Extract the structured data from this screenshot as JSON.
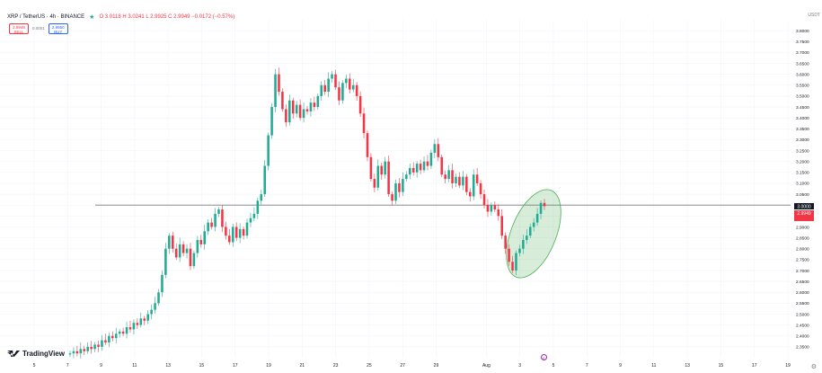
{
  "header": {
    "symbol": "XRP / TetherUS · 4h · BINANCE",
    "ohlc": "O 3.0118 H 3.0241 L 2.9925 C 2.9949 −0.0172 (−0.57%)"
  },
  "trade": {
    "sell_price": "2.9949",
    "sell_label": "SELL",
    "spread": "0.0001",
    "buy_price": "2.9950",
    "buy_label": "BUY"
  },
  "currency": "USDT",
  "brand": "TradingView",
  "price_tags": {
    "reference": "3.0000",
    "current": "2.9949"
  },
  "colors": {
    "up": "#22ab94",
    "down": "#f23645",
    "ellipse": "#4caf50",
    "hline": "#787b86"
  },
  "chart_data": {
    "type": "candlestick",
    "ylim": [
      2.3,
      3.85
    ],
    "y_ticks": [
      "3.8000",
      "3.7500",
      "3.7000",
      "3.6500",
      "3.6000",
      "3.5500",
      "3.5000",
      "3.4500",
      "3.4000",
      "3.3500",
      "3.3000",
      "3.2500",
      "3.2000",
      "3.1500",
      "3.1000",
      "3.0500",
      "3.0000",
      "2.9500",
      "2.9000",
      "2.8500",
      "2.8000",
      "2.7500",
      "2.7000",
      "2.6500",
      "2.6000",
      "2.5500",
      "2.5000",
      "2.4500",
      "2.4000",
      "2.3500"
    ],
    "x_ticks": [
      "5",
      "7",
      "9",
      "11",
      "13",
      "15",
      "17",
      "19",
      "21",
      "23",
      "25",
      "27",
      "29",
      "Aug",
      "3",
      "5",
      "7",
      "9",
      "11",
      "13",
      "15",
      "17",
      "19"
    ],
    "x_tick_pos": [
      0,
      12,
      24,
      36,
      48,
      60,
      72,
      84,
      96,
      108,
      120,
      132,
      144,
      162,
      174,
      186,
      198,
      210,
      222,
      234,
      246,
      258,
      270
    ],
    "horizontal_line": 3.0,
    "closes": [
      2.32,
      2.33,
      2.32,
      2.34,
      2.33,
      2.35,
      2.34,
      2.36,
      2.35,
      2.38,
      2.37,
      2.4,
      2.39,
      2.41,
      2.42,
      2.41,
      2.44,
      2.43,
      2.46,
      2.45,
      2.48,
      2.47,
      2.5,
      2.52,
      2.55,
      2.6,
      2.68,
      2.8,
      2.86,
      2.8,
      2.76,
      2.82,
      2.78,
      2.8,
      2.72,
      2.78,
      2.84,
      2.82,
      2.88,
      2.92,
      2.9,
      2.96,
      2.98,
      2.9,
      2.86,
      2.83,
      2.9,
      2.85,
      2.89,
      2.86,
      2.92,
      2.94,
      2.96,
      3.02,
      3.05,
      3.18,
      3.32,
      3.45,
      3.6,
      3.52,
      3.44,
      3.38,
      3.48,
      3.42,
      3.46,
      3.4,
      3.44,
      3.43,
      3.47,
      3.45,
      3.5,
      3.55,
      3.52,
      3.58,
      3.6,
      3.54,
      3.48,
      3.56,
      3.58,
      3.53,
      3.55,
      3.5,
      3.42,
      3.33,
      3.22,
      3.12,
      3.08,
      3.18,
      3.14,
      3.2,
      3.05,
      3.02,
      3.1,
      3.06,
      3.12,
      3.14,
      3.17,
      3.15,
      3.19,
      3.16,
      3.2,
      3.18,
      3.24,
      3.28,
      3.22,
      3.14,
      3.12,
      3.16,
      3.1,
      3.13,
      3.09,
      3.13,
      3.06,
      3.04,
      3.14,
      3.1,
      3.05,
      3.0,
      2.97,
      3.0,
      2.98,
      2.95,
      2.86,
      2.8,
      2.74,
      2.7,
      2.78,
      2.8,
      2.84,
      2.86,
      2.9,
      2.92,
      2.96,
      3.01,
      2.995
    ]
  }
}
